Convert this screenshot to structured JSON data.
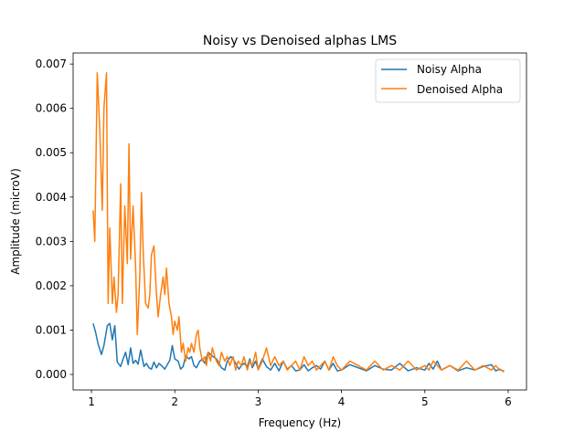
{
  "chart_data": {
    "type": "line",
    "title": "Noisy vs Denoised alphas LMS",
    "xlabel": "Frequency (Hz)",
    "ylabel": "Amplitude (microV)",
    "xlim": [
      0.78,
      6.22
    ],
    "ylim": [
      -0.00035,
      0.00725
    ],
    "xticks": [
      1,
      2,
      3,
      4,
      5,
      6
    ],
    "xtick_labels": [
      "1",
      "2",
      "3",
      "4",
      "5",
      "6"
    ],
    "yticks": [
      0,
      0.001,
      0.002,
      0.003,
      0.004,
      0.005,
      0.006,
      0.007
    ],
    "ytick_labels": [
      "0.000",
      "0.001",
      "0.002",
      "0.003",
      "0.004",
      "0.005",
      "0.006",
      "0.007"
    ],
    "grid": false,
    "legend": "top-right",
    "series": [
      {
        "name": "Noisy Alpha",
        "color": "#1f77b4",
        "x": [
          1.02,
          1.05,
          1.08,
          1.12,
          1.15,
          1.19,
          1.22,
          1.25,
          1.28,
          1.31,
          1.35,
          1.38,
          1.41,
          1.44,
          1.47,
          1.5,
          1.53,
          1.56,
          1.59,
          1.63,
          1.66,
          1.69,
          1.72,
          1.75,
          1.78,
          1.81,
          1.85,
          1.88,
          1.91,
          1.94,
          1.97,
          2.0,
          2.04,
          2.07,
          2.1,
          2.13,
          2.17,
          2.2,
          2.23,
          2.26,
          2.3,
          2.33,
          2.36,
          2.4,
          2.43,
          2.46,
          2.5,
          2.53,
          2.56,
          2.6,
          2.63,
          2.67,
          2.7,
          2.73,
          2.77,
          2.8,
          2.83,
          2.87,
          2.9,
          2.93,
          2.97,
          3.0,
          3.05,
          3.1,
          3.15,
          3.2,
          3.25,
          3.3,
          3.35,
          3.4,
          3.45,
          3.5,
          3.55,
          3.6,
          3.65,
          3.7,
          3.75,
          3.8,
          3.85,
          3.9,
          3.95,
          4.0,
          4.1,
          4.2,
          4.3,
          4.4,
          4.5,
          4.6,
          4.7,
          4.8,
          4.9,
          5.0,
          5.05,
          5.1,
          5.15,
          5.2,
          5.3,
          5.4,
          5.5,
          5.6,
          5.7,
          5.8,
          5.85,
          5.9,
          5.95
        ],
        "values": [
          0.00115,
          0.00095,
          0.00068,
          0.00045,
          0.00065,
          0.0011,
          0.00115,
          0.00078,
          0.0011,
          0.00028,
          0.00018,
          0.00035,
          0.0005,
          0.00022,
          0.0006,
          0.00025,
          0.00032,
          0.00023,
          0.00055,
          0.00018,
          0.00025,
          0.00015,
          0.00012,
          0.00028,
          0.00015,
          0.00025,
          0.00018,
          0.00012,
          0.00022,
          0.00032,
          0.00065,
          0.00035,
          0.0003,
          0.00012,
          0.00018,
          0.00042,
          0.00035,
          0.0004,
          0.0002,
          0.00015,
          0.0003,
          0.00035,
          0.00025,
          0.0005,
          0.00045,
          0.0004,
          0.00035,
          0.00025,
          0.00015,
          0.0001,
          0.0003,
          0.0004,
          0.00035,
          0.00025,
          0.00012,
          0.0002,
          0.00025,
          0.00018,
          0.00035,
          0.00015,
          0.0003,
          0.00012,
          0.00035,
          0.00018,
          0.0001,
          0.00025,
          8e-05,
          0.0003,
          0.00012,
          0.0002,
          8e-05,
          0.0001,
          0.00022,
          8e-05,
          0.00015,
          0.0002,
          0.00012,
          0.0003,
          0.0001,
          0.00025,
          8e-05,
          0.0001,
          0.00022,
          0.00015,
          8e-05,
          0.0002,
          0.00012,
          0.0001,
          0.00025,
          8e-05,
          0.00015,
          0.0001,
          0.00025,
          0.00012,
          0.0003,
          0.0001,
          0.0002,
          8e-05,
          0.00015,
          0.0001,
          0.00018,
          0.00022,
          8e-05,
          0.00012,
          6e-05
        ]
      },
      {
        "name": "Denoised Alpha",
        "color": "#ff7f0e",
        "x": [
          1.02,
          1.04,
          1.07,
          1.1,
          1.13,
          1.15,
          1.18,
          1.2,
          1.22,
          1.25,
          1.27,
          1.3,
          1.32,
          1.35,
          1.37,
          1.4,
          1.43,
          1.45,
          1.47,
          1.5,
          1.53,
          1.55,
          1.58,
          1.6,
          1.62,
          1.65,
          1.68,
          1.7,
          1.72,
          1.75,
          1.78,
          1.8,
          1.83,
          1.86,
          1.88,
          1.9,
          1.93,
          1.96,
          1.98,
          2.0,
          2.03,
          2.05,
          2.08,
          2.1,
          2.13,
          2.16,
          2.18,
          2.2,
          2.23,
          2.26,
          2.28,
          2.3,
          2.33,
          2.36,
          2.38,
          2.4,
          2.43,
          2.45,
          2.48,
          2.5,
          2.53,
          2.56,
          2.6,
          2.63,
          2.66,
          2.7,
          2.73,
          2.76,
          2.8,
          2.83,
          2.87,
          2.9,
          2.93,
          2.97,
          3.0,
          3.05,
          3.1,
          3.15,
          3.2,
          3.25,
          3.3,
          3.35,
          3.4,
          3.45,
          3.5,
          3.55,
          3.6,
          3.65,
          3.7,
          3.75,
          3.8,
          3.85,
          3.9,
          3.95,
          4.0,
          4.1,
          4.2,
          4.3,
          4.4,
          4.5,
          4.6,
          4.7,
          4.8,
          4.9,
          5.0,
          5.05,
          5.1,
          5.15,
          5.2,
          5.3,
          5.4,
          5.5,
          5.6,
          5.7,
          5.8,
          5.85,
          5.9,
          5.95
        ],
        "values": [
          0.0037,
          0.003,
          0.0068,
          0.0055,
          0.0037,
          0.006,
          0.0068,
          0.0016,
          0.0033,
          0.0016,
          0.0022,
          0.0014,
          0.0018,
          0.0043,
          0.0016,
          0.0038,
          0.0025,
          0.0052,
          0.0026,
          0.0038,
          0.0024,
          0.0009,
          0.0022,
          0.0041,
          0.0028,
          0.0016,
          0.0015,
          0.0018,
          0.0027,
          0.0029,
          0.0018,
          0.0013,
          0.0018,
          0.0022,
          0.0018,
          0.0024,
          0.0016,
          0.0013,
          0.0009,
          0.0012,
          0.001,
          0.0013,
          0.0005,
          0.0007,
          0.0003,
          0.0006,
          0.0005,
          0.0007,
          0.0005,
          0.0009,
          0.001,
          0.0006,
          0.0003,
          0.0004,
          0.0002,
          0.0005,
          0.0003,
          0.0006,
          0.0004,
          0.0003,
          0.0002,
          0.0005,
          0.0003,
          0.0004,
          0.0002,
          0.0004,
          0.0001,
          0.0003,
          0.0002,
          0.0004,
          0.0001,
          0.0003,
          0.0002,
          0.0005,
          0.0001,
          0.0003,
          0.0006,
          0.0002,
          0.0004,
          0.0002,
          0.0003,
          0.0001,
          0.0002,
          0.0003,
          0.0001,
          0.0004,
          0.0002,
          0.0003,
          0.0001,
          0.0002,
          0.0003,
          0.0001,
          0.0004,
          0.0002,
          0.0001,
          0.0003,
          0.0002,
          0.0001,
          0.0003,
          0.0001,
          0.0002,
          0.0001,
          0.0003,
          0.0001,
          0.0002,
          0.0001,
          0.0003,
          0.0002,
          0.0001,
          0.0002,
          0.0001,
          0.0003,
          0.0001,
          0.0002,
          0.0001,
          0.0002,
          0.0001,
          8e-05
        ]
      }
    ]
  }
}
